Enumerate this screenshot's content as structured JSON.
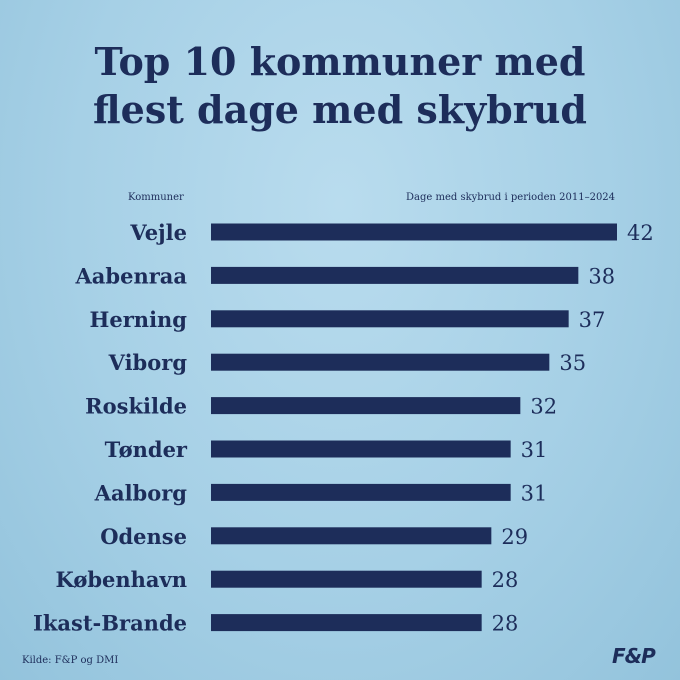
{
  "chart_data": {
    "type": "bar",
    "orientation": "horizontal",
    "title_lines": [
      "Top 10 kommuner med",
      "flest dage med skybrud"
    ],
    "category_header": "Kommuner",
    "value_header": "Dage med skybrud i perioden 2011–2024",
    "categories": [
      "Vejle",
      "Aabenraa",
      "Herning",
      "Viborg",
      "Roskilde",
      "Tønder",
      "Aalborg",
      "Odense",
      "København",
      "Ikast-Brande"
    ],
    "values": [
      42,
      38,
      37,
      35,
      32,
      31,
      31,
      29,
      28,
      28
    ],
    "xlim": [
      0,
      42
    ],
    "grid": false,
    "legend": "none",
    "bar_color": "#1d2d5a"
  },
  "footer": {
    "source": "Kilde: F&P og DMI",
    "logo": "F&P"
  }
}
